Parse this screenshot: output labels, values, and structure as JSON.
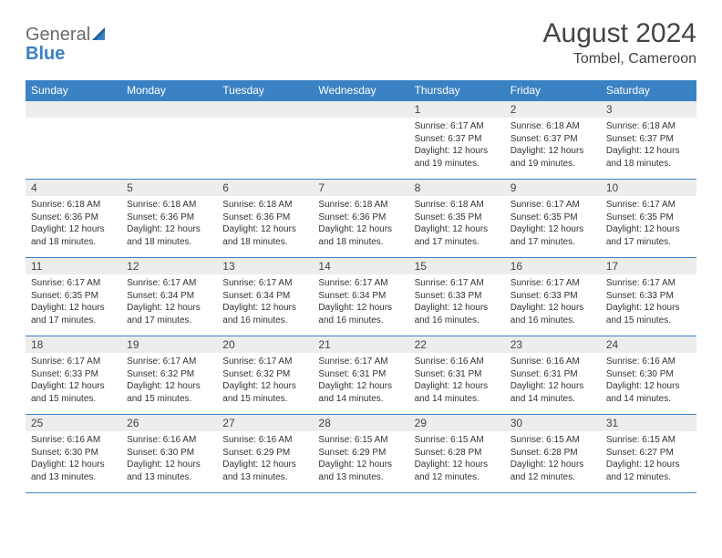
{
  "logo": {
    "text1": "General",
    "text2": "Blue"
  },
  "title": "August 2024",
  "location": "Tombel, Cameroon",
  "colors": {
    "header_bg": "#3b82c4",
    "header_fg": "#ffffff",
    "daynum_bg": "#ededed",
    "border": "#3b82c4",
    "text": "#333333"
  },
  "day_headers": [
    "Sunday",
    "Monday",
    "Tuesday",
    "Wednesday",
    "Thursday",
    "Friday",
    "Saturday"
  ],
  "weeks": [
    [
      {
        "n": "",
        "lines": []
      },
      {
        "n": "",
        "lines": []
      },
      {
        "n": "",
        "lines": []
      },
      {
        "n": "",
        "lines": []
      },
      {
        "n": "1",
        "lines": [
          "Sunrise: 6:17 AM",
          "Sunset: 6:37 PM",
          "Daylight: 12 hours and 19 minutes."
        ]
      },
      {
        "n": "2",
        "lines": [
          "Sunrise: 6:18 AM",
          "Sunset: 6:37 PM",
          "Daylight: 12 hours and 19 minutes."
        ]
      },
      {
        "n": "3",
        "lines": [
          "Sunrise: 6:18 AM",
          "Sunset: 6:37 PM",
          "Daylight: 12 hours and 18 minutes."
        ]
      }
    ],
    [
      {
        "n": "4",
        "lines": [
          "Sunrise: 6:18 AM",
          "Sunset: 6:36 PM",
          "Daylight: 12 hours and 18 minutes."
        ]
      },
      {
        "n": "5",
        "lines": [
          "Sunrise: 6:18 AM",
          "Sunset: 6:36 PM",
          "Daylight: 12 hours and 18 minutes."
        ]
      },
      {
        "n": "6",
        "lines": [
          "Sunrise: 6:18 AM",
          "Sunset: 6:36 PM",
          "Daylight: 12 hours and 18 minutes."
        ]
      },
      {
        "n": "7",
        "lines": [
          "Sunrise: 6:18 AM",
          "Sunset: 6:36 PM",
          "Daylight: 12 hours and 18 minutes."
        ]
      },
      {
        "n": "8",
        "lines": [
          "Sunrise: 6:18 AM",
          "Sunset: 6:35 PM",
          "Daylight: 12 hours and 17 minutes."
        ]
      },
      {
        "n": "9",
        "lines": [
          "Sunrise: 6:17 AM",
          "Sunset: 6:35 PM",
          "Daylight: 12 hours and 17 minutes."
        ]
      },
      {
        "n": "10",
        "lines": [
          "Sunrise: 6:17 AM",
          "Sunset: 6:35 PM",
          "Daylight: 12 hours and 17 minutes."
        ]
      }
    ],
    [
      {
        "n": "11",
        "lines": [
          "Sunrise: 6:17 AM",
          "Sunset: 6:35 PM",
          "Daylight: 12 hours and 17 minutes."
        ]
      },
      {
        "n": "12",
        "lines": [
          "Sunrise: 6:17 AM",
          "Sunset: 6:34 PM",
          "Daylight: 12 hours and 17 minutes."
        ]
      },
      {
        "n": "13",
        "lines": [
          "Sunrise: 6:17 AM",
          "Sunset: 6:34 PM",
          "Daylight: 12 hours and 16 minutes."
        ]
      },
      {
        "n": "14",
        "lines": [
          "Sunrise: 6:17 AM",
          "Sunset: 6:34 PM",
          "Daylight: 12 hours and 16 minutes."
        ]
      },
      {
        "n": "15",
        "lines": [
          "Sunrise: 6:17 AM",
          "Sunset: 6:33 PM",
          "Daylight: 12 hours and 16 minutes."
        ]
      },
      {
        "n": "16",
        "lines": [
          "Sunrise: 6:17 AM",
          "Sunset: 6:33 PM",
          "Daylight: 12 hours and 16 minutes."
        ]
      },
      {
        "n": "17",
        "lines": [
          "Sunrise: 6:17 AM",
          "Sunset: 6:33 PM",
          "Daylight: 12 hours and 15 minutes."
        ]
      }
    ],
    [
      {
        "n": "18",
        "lines": [
          "Sunrise: 6:17 AM",
          "Sunset: 6:33 PM",
          "Daylight: 12 hours and 15 minutes."
        ]
      },
      {
        "n": "19",
        "lines": [
          "Sunrise: 6:17 AM",
          "Sunset: 6:32 PM",
          "Daylight: 12 hours and 15 minutes."
        ]
      },
      {
        "n": "20",
        "lines": [
          "Sunrise: 6:17 AM",
          "Sunset: 6:32 PM",
          "Daylight: 12 hours and 15 minutes."
        ]
      },
      {
        "n": "21",
        "lines": [
          "Sunrise: 6:17 AM",
          "Sunset: 6:31 PM",
          "Daylight: 12 hours and 14 minutes."
        ]
      },
      {
        "n": "22",
        "lines": [
          "Sunrise: 6:16 AM",
          "Sunset: 6:31 PM",
          "Daylight: 12 hours and 14 minutes."
        ]
      },
      {
        "n": "23",
        "lines": [
          "Sunrise: 6:16 AM",
          "Sunset: 6:31 PM",
          "Daylight: 12 hours and 14 minutes."
        ]
      },
      {
        "n": "24",
        "lines": [
          "Sunrise: 6:16 AM",
          "Sunset: 6:30 PM",
          "Daylight: 12 hours and 14 minutes."
        ]
      }
    ],
    [
      {
        "n": "25",
        "lines": [
          "Sunrise: 6:16 AM",
          "Sunset: 6:30 PM",
          "Daylight: 12 hours and 13 minutes."
        ]
      },
      {
        "n": "26",
        "lines": [
          "Sunrise: 6:16 AM",
          "Sunset: 6:30 PM",
          "Daylight: 12 hours and 13 minutes."
        ]
      },
      {
        "n": "27",
        "lines": [
          "Sunrise: 6:16 AM",
          "Sunset: 6:29 PM",
          "Daylight: 12 hours and 13 minutes."
        ]
      },
      {
        "n": "28",
        "lines": [
          "Sunrise: 6:15 AM",
          "Sunset: 6:29 PM",
          "Daylight: 12 hours and 13 minutes."
        ]
      },
      {
        "n": "29",
        "lines": [
          "Sunrise: 6:15 AM",
          "Sunset: 6:28 PM",
          "Daylight: 12 hours and 12 minutes."
        ]
      },
      {
        "n": "30",
        "lines": [
          "Sunrise: 6:15 AM",
          "Sunset: 6:28 PM",
          "Daylight: 12 hours and 12 minutes."
        ]
      },
      {
        "n": "31",
        "lines": [
          "Sunrise: 6:15 AM",
          "Sunset: 6:27 PM",
          "Daylight: 12 hours and 12 minutes."
        ]
      }
    ]
  ]
}
